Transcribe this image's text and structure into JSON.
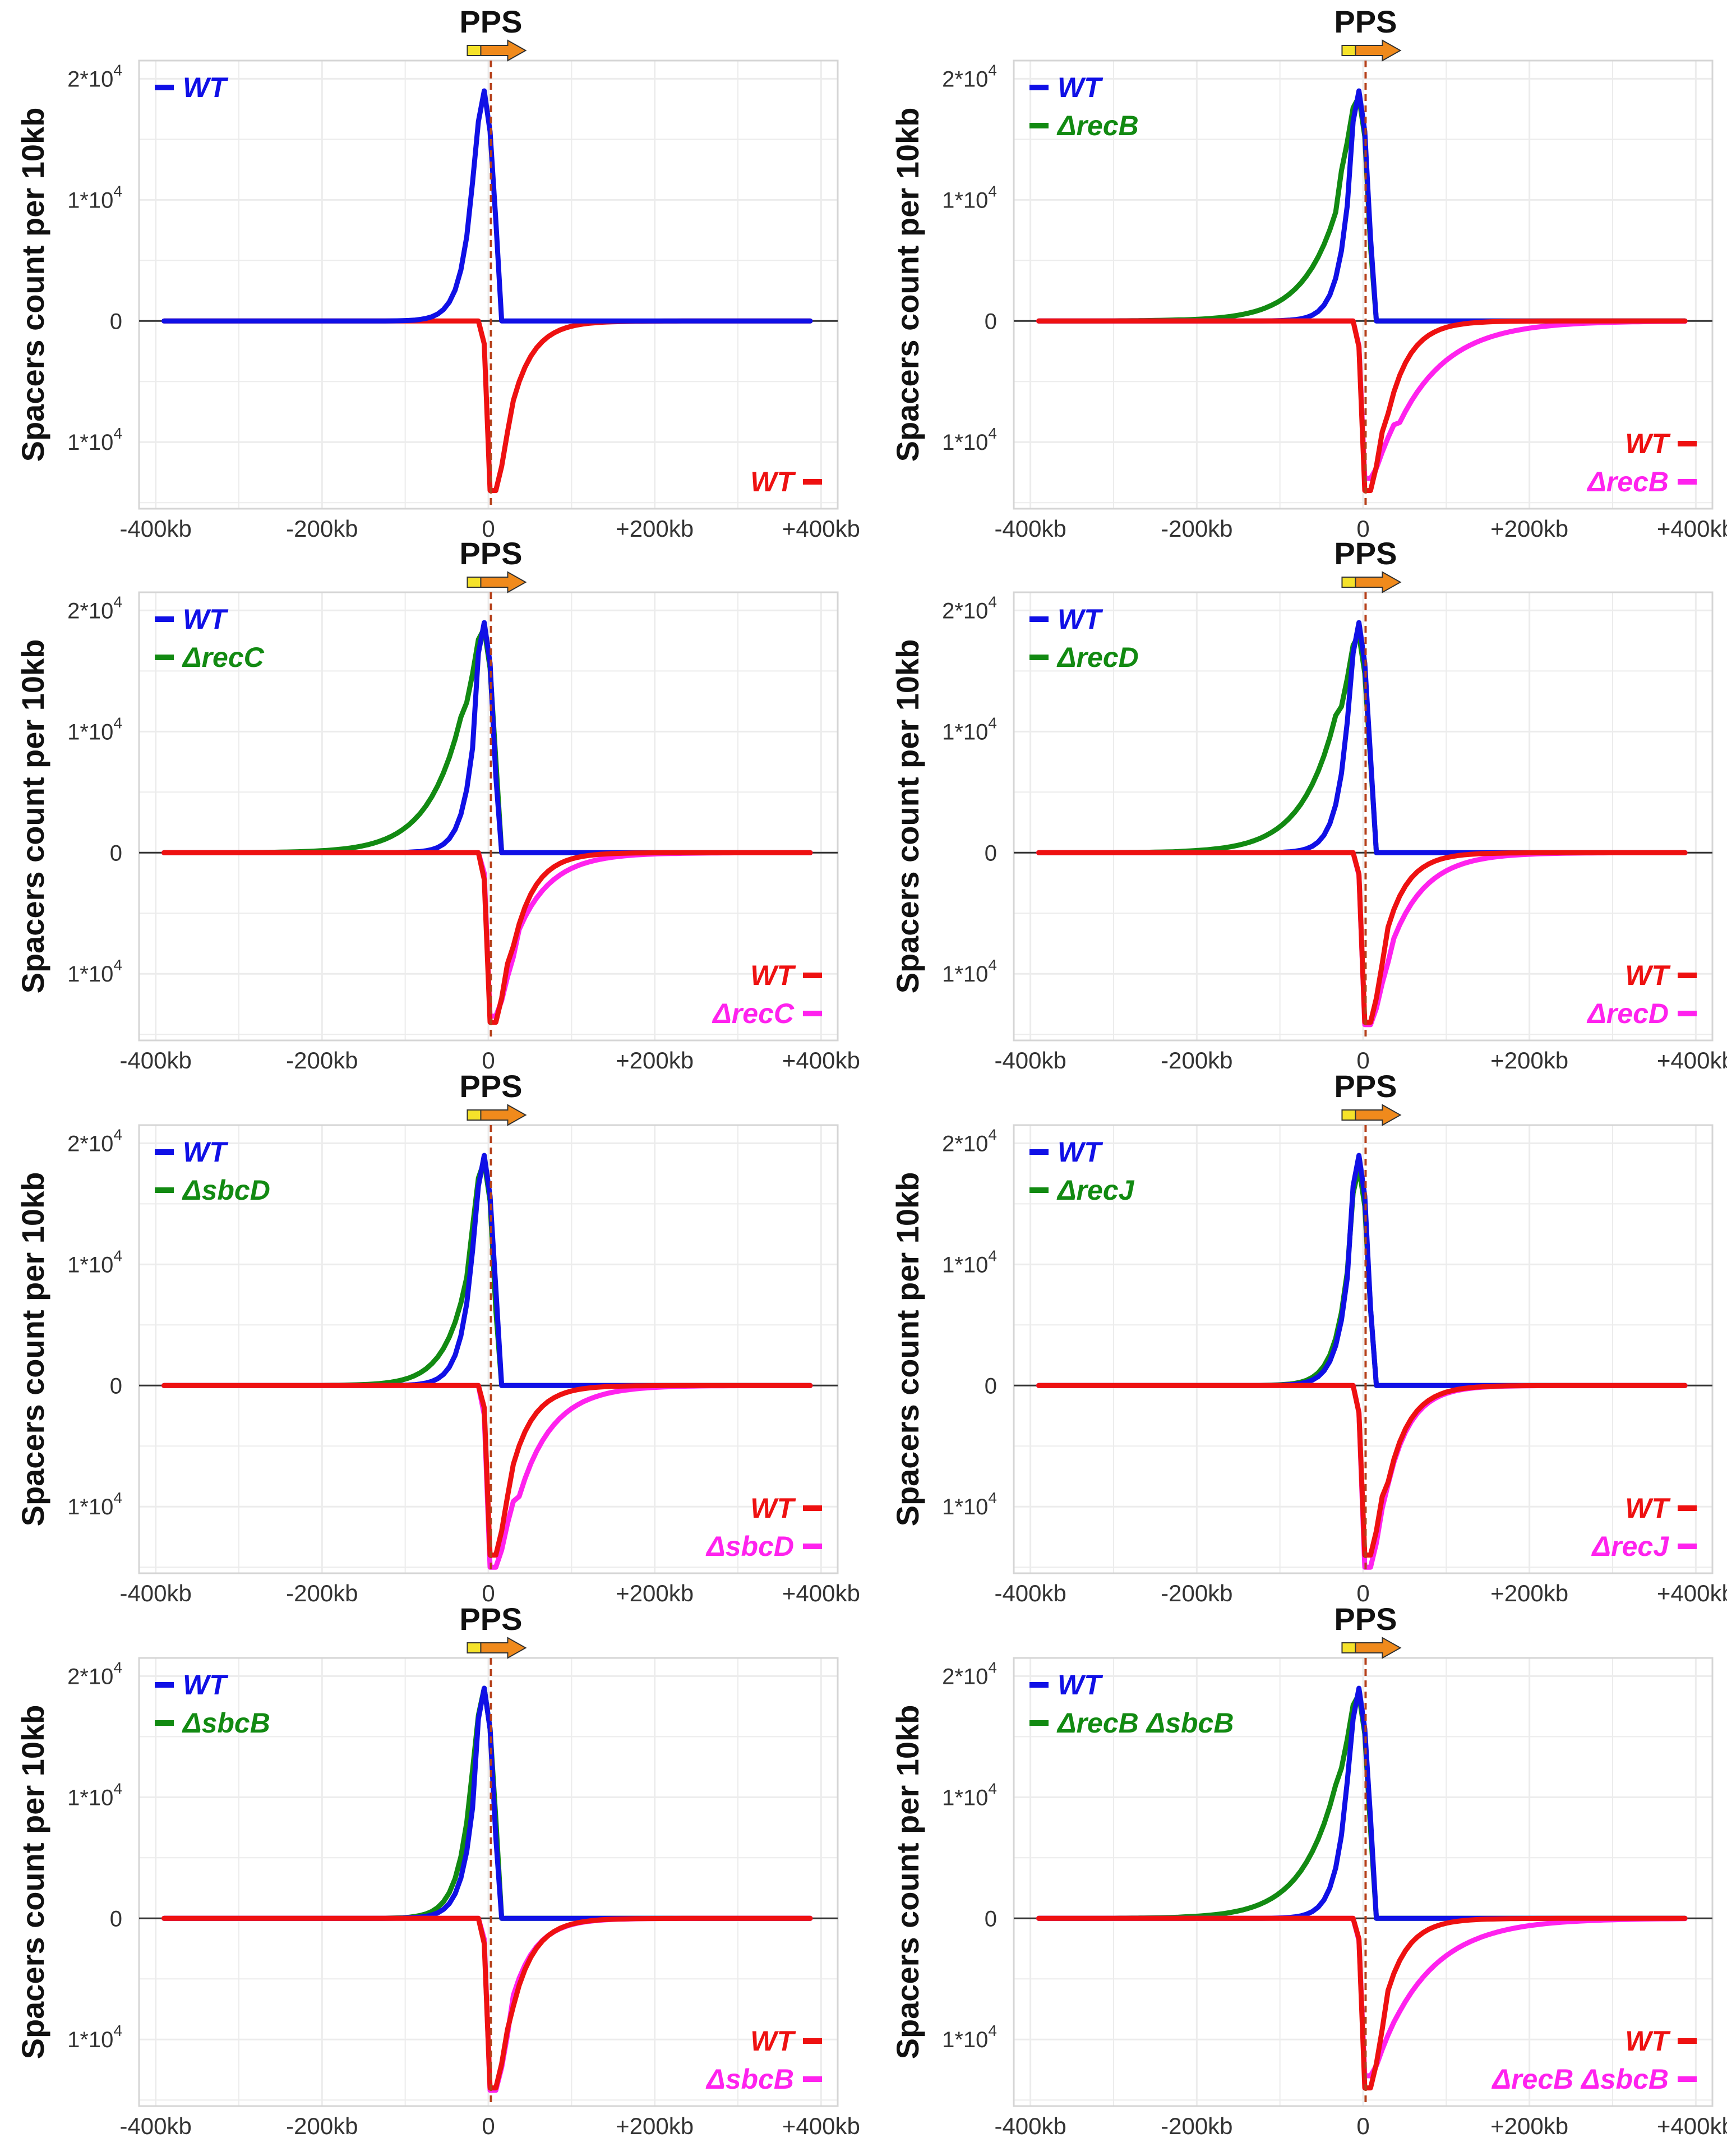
{
  "colors": {
    "wt_top": "#1010e6",
    "mut_top": "#128a12",
    "wt_bottom": "#ee1111",
    "mut_bottom": "#ff22ee",
    "pps_line": "#b5401a",
    "grid": "#ececec",
    "frame": "#d5d5d5",
    "zero_line": "#333333"
  },
  "chart_data": [
    {
      "type": "line",
      "panel": "recA-wt",
      "pps_label": "PPS",
      "ylabel": "Spacers count per 10kb",
      "xticks": [
        "-400kb",
        "-200kb",
        "0",
        "+200kb",
        "+400kb"
      ],
      "xlim": [
        -420,
        420
      ],
      "yticks": [
        "2*10",
        "1*10",
        "0",
        "1*10"
      ],
      "ytick_values": [
        20000,
        10000,
        0,
        -10000
      ],
      "ytick_exp": "4",
      "ylim": [
        -15500,
        21500
      ],
      "series": [
        {
          "name": "WT",
          "legend_label": "WT",
          "strand": "top",
          "color_key": "wt_top",
          "profile": "wt_top",
          "peak": 19000
        },
        {
          "name": "WT",
          "legend_label": "WT",
          "strand": "bottom",
          "color_key": "wt_bottom",
          "profile": "wt_bottom",
          "peak": 14000
        }
      ]
    },
    {
      "type": "line",
      "panel": "recB",
      "pps_label": "PPS",
      "ylabel": "Spacers count per 10kb",
      "xticks": [
        "-400kb",
        "-200kb",
        "0",
        "+200kb",
        "+400kb"
      ],
      "xlim": [
        -420,
        420
      ],
      "yticks": [
        "2*10",
        "1*10",
        "0",
        "1*10"
      ],
      "ytick_values": [
        20000,
        10000,
        0,
        -10000
      ],
      "ytick_exp": "4",
      "ylim": [
        -15500,
        21500
      ],
      "series": [
        {
          "name": "WT",
          "legend_label": "WT",
          "strand": "top",
          "color_key": "wt_top",
          "profile": "wt_top",
          "peak": 19000
        },
        {
          "name": "ΔrecB",
          "legend_label": "ΔrecB",
          "strand": "top",
          "color_key": "mut_top",
          "profile": "mut_top_broad",
          "peak": 18500
        },
        {
          "name": "WT",
          "legend_label": "WT",
          "strand": "bottom",
          "color_key": "wt_bottom",
          "profile": "wt_bottom",
          "peak": 14000
        },
        {
          "name": "ΔrecB",
          "legend_label": "ΔrecB",
          "strand": "bottom",
          "color_key": "mut_bottom",
          "profile": "mut_bottom_broad",
          "peak": 13000
        }
      ]
    },
    {
      "type": "line",
      "panel": "recC",
      "pps_label": "PPS",
      "ylabel": "Spacers count per 10kb",
      "xticks": [
        "-400kb",
        "-200kb",
        "0",
        "+200kb",
        "+400kb"
      ],
      "xlim": [
        -420,
        420
      ],
      "yticks": [
        "2*10",
        "1*10",
        "0",
        "1*10"
      ],
      "ytick_values": [
        20000,
        10000,
        0,
        -10000
      ],
      "ytick_exp": "4",
      "ylim": [
        -15500,
        21500
      ],
      "series": [
        {
          "name": "WT",
          "legend_label": "WT",
          "strand": "top",
          "color_key": "wt_top",
          "profile": "wt_top",
          "peak": 19000
        },
        {
          "name": "ΔrecC",
          "legend_label": "ΔrecC",
          "strand": "top",
          "color_key": "mut_top",
          "profile": "mut_top_broad",
          "peak": 18500
        },
        {
          "name": "WT",
          "legend_label": "WT",
          "strand": "bottom",
          "color_key": "wt_bottom",
          "profile": "wt_bottom",
          "peak": 14000
        },
        {
          "name": "ΔrecC",
          "legend_label": "ΔrecC",
          "strand": "bottom",
          "color_key": "mut_bottom",
          "profile": "mut_bottom_medium",
          "peak": 13500
        }
      ]
    },
    {
      "type": "line",
      "panel": "recD",
      "pps_label": "PPS",
      "ylabel": "Spacers count per 10kb",
      "xticks": [
        "-400kb",
        "-200kb",
        "0",
        "+200kb",
        "+400kb"
      ],
      "xlim": [
        -420,
        420
      ],
      "yticks": [
        "2*10",
        "1*10",
        "0",
        "1*10"
      ],
      "ytick_values": [
        20000,
        10000,
        0,
        -10000
      ],
      "ytick_exp": "4",
      "ylim": [
        -15500,
        21500
      ],
      "series": [
        {
          "name": "WT",
          "legend_label": "WT",
          "strand": "top",
          "color_key": "wt_top",
          "profile": "wt_top",
          "peak": 19000
        },
        {
          "name": "ΔrecD",
          "legend_label": "ΔrecD",
          "strand": "top",
          "color_key": "mut_top",
          "profile": "mut_top_broad",
          "peak": 18000
        },
        {
          "name": "WT",
          "legend_label": "WT",
          "strand": "bottom",
          "color_key": "wt_bottom",
          "profile": "wt_bottom",
          "peak": 14000
        },
        {
          "name": "ΔrecD",
          "legend_label": "ΔrecD",
          "strand": "bottom",
          "color_key": "mut_bottom",
          "profile": "mut_bottom_medium",
          "peak": 14200
        }
      ]
    },
    {
      "type": "line",
      "panel": "sbcD",
      "pps_label": "PPS",
      "ylabel": "Spacers count per 10kb",
      "xticks": [
        "-400kb",
        "-200kb",
        "0",
        "+200kb",
        "+400kb"
      ],
      "xlim": [
        -420,
        420
      ],
      "yticks": [
        "2*10",
        "1*10",
        "0",
        "1*10"
      ],
      "ytick_values": [
        20000,
        10000,
        0,
        -10000
      ],
      "ytick_exp": "4",
      "ylim": [
        -15500,
        21500
      ],
      "series": [
        {
          "name": "WT",
          "legend_label": "WT",
          "strand": "top",
          "color_key": "wt_top",
          "profile": "wt_top",
          "peak": 19000
        },
        {
          "name": "ΔsbcD",
          "legend_label": "ΔsbcD",
          "strand": "top",
          "color_key": "mut_top",
          "profile": "mut_top_medium",
          "peak": 18500
        },
        {
          "name": "WT",
          "legend_label": "WT",
          "strand": "bottom",
          "color_key": "wt_bottom",
          "profile": "wt_bottom",
          "peak": 14000
        },
        {
          "name": "ΔsbcD",
          "legend_label": "ΔsbcD",
          "strand": "bottom",
          "color_key": "mut_bottom",
          "profile": "mut_bottom_medium",
          "peak": 15000
        }
      ]
    },
    {
      "type": "line",
      "panel": "recJ",
      "pps_label": "PPS",
      "ylabel": "Spacers count per 10kb",
      "xticks": [
        "-400kb",
        "-200kb",
        "0",
        "+200kb",
        "+400kb"
      ],
      "xlim": [
        -420,
        420
      ],
      "yticks": [
        "2*10",
        "1*10",
        "0",
        "1*10"
      ],
      "ytick_values": [
        20000,
        10000,
        0,
        -10000
      ],
      "ytick_exp": "4",
      "ylim": [
        -15500,
        21500
      ],
      "series": [
        {
          "name": "WT",
          "legend_label": "WT",
          "strand": "top",
          "color_key": "wt_top",
          "profile": "wt_top",
          "peak": 19000
        },
        {
          "name": "ΔrecJ",
          "legend_label": "ΔrecJ",
          "strand": "top",
          "color_key": "mut_top",
          "profile": "mut_top_narrow",
          "peak": 18000
        },
        {
          "name": "WT",
          "legend_label": "WT",
          "strand": "bottom",
          "color_key": "wt_bottom",
          "profile": "wt_bottom",
          "peak": 14000
        },
        {
          "name": "ΔrecJ",
          "legend_label": "ΔrecJ",
          "strand": "bottom",
          "color_key": "mut_bottom",
          "profile": "mut_bottom_narrow",
          "peak": 15000
        }
      ]
    },
    {
      "type": "line",
      "panel": "sbcB",
      "pps_label": "PPS",
      "ylabel": "Spacers count per 10kb",
      "xticks": [
        "-400kb",
        "-200kb",
        "0",
        "+200kb",
        "+400kb"
      ],
      "xlim": [
        -420,
        420
      ],
      "yticks": [
        "2*10",
        "1*10",
        "0",
        "1*10"
      ],
      "ytick_values": [
        20000,
        10000,
        0,
        -10000
      ],
      "ytick_exp": "4",
      "ylim": [
        -15500,
        21500
      ],
      "series": [
        {
          "name": "WT",
          "legend_label": "WT",
          "strand": "top",
          "color_key": "wt_top",
          "profile": "wt_top",
          "peak": 19000
        },
        {
          "name": "ΔsbcB",
          "legend_label": "ΔsbcB",
          "strand": "top",
          "color_key": "mut_top",
          "profile": "mut_top_narrow",
          "peak": 19000
        },
        {
          "name": "WT",
          "legend_label": "WT",
          "strand": "bottom",
          "color_key": "wt_bottom",
          "profile": "wt_bottom",
          "peak": 14000
        },
        {
          "name": "ΔsbcB",
          "legend_label": "ΔsbcB",
          "strand": "bottom",
          "color_key": "mut_bottom",
          "profile": "mut_bottom_narrow",
          "peak": 14200
        }
      ]
    },
    {
      "type": "line",
      "panel": "recB-sbcB",
      "pps_label": "PPS",
      "ylabel": "Spacers count per 10kb",
      "xticks": [
        "-400kb",
        "-200kb",
        "0",
        "+200kb",
        "+400kb"
      ],
      "xlim": [
        -420,
        420
      ],
      "yticks": [
        "2*10",
        "1*10",
        "0",
        "1*10"
      ],
      "ytick_values": [
        20000,
        10000,
        0,
        -10000
      ],
      "ytick_exp": "4",
      "ylim": [
        -15500,
        21500
      ],
      "series": [
        {
          "name": "WT",
          "legend_label": "WT",
          "strand": "top",
          "color_key": "wt_top",
          "profile": "wt_top",
          "peak": 19000
        },
        {
          "name": "ΔrecB ΔsbcB",
          "legend_label": "ΔrecB ΔsbcB",
          "strand": "top",
          "color_key": "mut_top",
          "profile": "mut_top_broad",
          "peak": 18500
        },
        {
          "name": "WT",
          "legend_label": "WT",
          "strand": "bottom",
          "color_key": "wt_bottom",
          "profile": "wt_bottom",
          "peak": 14000
        },
        {
          "name": "ΔrecB ΔsbcB",
          "legend_label": "ΔrecB ΔsbcB",
          "strand": "bottom",
          "color_key": "mut_bottom",
          "profile": "mut_bottom_broad",
          "peak": 13000
        }
      ]
    }
  ]
}
